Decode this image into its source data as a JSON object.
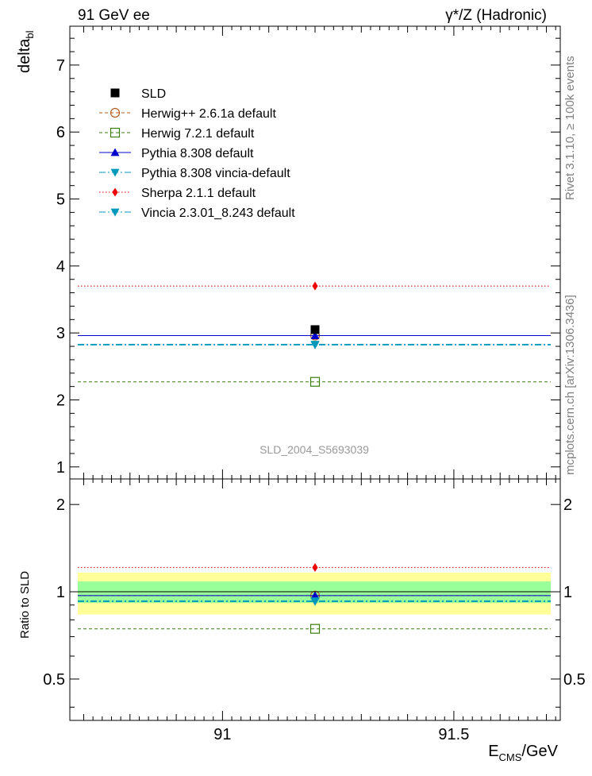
{
  "header": {
    "left_label": "91 GeV ee",
    "right_label": "γ*/Z (Hadronic)"
  },
  "side_text": {
    "version": "Rivet 3.1.10, ≥ 100k events",
    "source": "mcplots.cern.ch [arXiv:1306.3436]"
  },
  "analysis_id": "SLD_2004_S5693039",
  "axes": {
    "ylabel_main": "delta",
    "ylabel_main_sub": "bl",
    "ylabel_ratio": "Ratio to SLD",
    "xlabel": "E",
    "xlabel_sub": "CMS",
    "xlabel_unit": "/GeV"
  },
  "colors": {
    "data": "#000000",
    "herwigpp": "#b35c1e",
    "herwig7": "#3a7d0c",
    "pythia": "#0000cc",
    "vincia": "#0099bb",
    "sherpa": "#ee0000",
    "band_outer": "#ffff99",
    "band_inner": "#99ff99"
  },
  "chart_data": {
    "type": "scatter",
    "x_range": [
      90.67,
      91.73
    ],
    "x_point": 91.2,
    "x_ticks": [
      91,
      91.5
    ],
    "x_tick_labels": [
      "91",
      "91.5"
    ],
    "main": {
      "ylim": [
        0.82,
        7.58
      ],
      "y_ticks": [
        1,
        2,
        3,
        4,
        5,
        6,
        7
      ],
      "y_tick_labels": [
        "1",
        "2",
        "3",
        "4",
        "5",
        "6",
        "7"
      ]
    },
    "ratio": {
      "ylim_log": [
        0.36,
        2.45
      ],
      "y_ticks": [
        0.5,
        1,
        2
      ],
      "y_tick_labels": [
        "0.5",
        "1",
        "2"
      ],
      "band_inner": [
        0.915,
        1.085
      ],
      "band_outer": [
        0.835,
        1.165
      ]
    },
    "series": [
      {
        "key": "data",
        "name": "SLD",
        "value": 3.05,
        "ratio": 1.0,
        "marker": "square",
        "line": "none",
        "color_key": "data"
      },
      {
        "key": "herwigpp",
        "name": "Herwig++ 2.6.1a default",
        "value": 2.96,
        "ratio": 0.97,
        "marker": "circle-open",
        "line": "dashed",
        "color_key": "herwigpp"
      },
      {
        "key": "herwig7",
        "name": "Herwig 7.2.1 default",
        "value": 2.27,
        "ratio": 0.745,
        "marker": "square-open",
        "line": "dashed",
        "color_key": "herwig7"
      },
      {
        "key": "pythia",
        "name": "Pythia 8.308 default",
        "value": 2.96,
        "ratio": 0.97,
        "marker": "triangle-up",
        "line": "solid",
        "color_key": "pythia"
      },
      {
        "key": "pythia_vincia",
        "name": "Pythia 8.308 vincia-default",
        "value": 2.82,
        "ratio": 0.925,
        "marker": "triangle-down",
        "line": "dashdot",
        "color_key": "vincia"
      },
      {
        "key": "sherpa",
        "name": "Sherpa 2.1.1 default",
        "value": 3.7,
        "ratio": 1.213,
        "marker": "diamond",
        "line": "dotted",
        "color_key": "sherpa"
      },
      {
        "key": "vincia",
        "name": "Vincia 2.3.01_8.243 default",
        "value": 2.83,
        "ratio": 0.93,
        "marker": "triangle-down",
        "line": "dashdot",
        "color_key": "vincia"
      }
    ]
  }
}
